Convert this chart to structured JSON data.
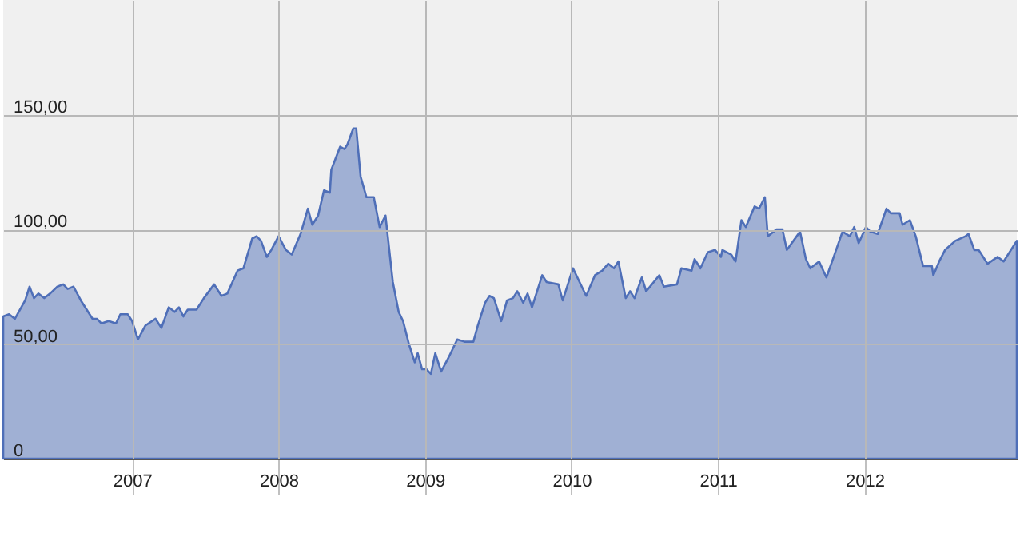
{
  "chart_data": {
    "type": "area",
    "series": [
      {
        "color": "#4f6fb8",
        "x": [
          2006.12,
          2006.16,
          2006.2,
          2006.27,
          2006.3,
          2006.33,
          2006.36,
          2006.4,
          2006.44,
          2006.49,
          2006.53,
          2006.56,
          2006.6,
          2006.65,
          2006.73,
          2006.76,
          2006.79,
          2006.84,
          2006.89,
          2006.92,
          2006.97,
          2007.0,
          2007.04,
          2007.09,
          2007.16,
          2007.2,
          2007.25,
          2007.29,
          2007.32,
          2007.35,
          2007.38,
          2007.44,
          2007.49,
          2007.56,
          2007.61,
          2007.65,
          2007.72,
          2007.76,
          2007.82,
          2007.85,
          2007.88,
          2007.92,
          2007.95,
          2008.0,
          2008.05,
          2008.09,
          2008.15,
          2008.2,
          2008.23,
          2008.27,
          2008.31,
          2008.35,
          2008.36,
          2008.39,
          2008.42,
          2008.45,
          2008.47,
          2008.51,
          2008.53,
          2008.56,
          2008.6,
          2008.65,
          2008.69,
          2008.73,
          2008.78,
          2008.82,
          2008.85,
          2008.89,
          2008.93,
          2008.95,
          2008.98,
          2009.01,
          2009.04,
          2009.07,
          2009.11,
          2009.16,
          2009.22,
          2009.27,
          2009.33,
          2009.36,
          2009.41,
          2009.44,
          2009.47,
          2009.52,
          2009.56,
          2009.6,
          2009.63,
          2009.67,
          2009.7,
          2009.73,
          2009.8,
          2009.83,
          2009.91,
          2009.94,
          2010.01,
          2010.1,
          2010.16,
          2010.21,
          2010.25,
          2010.29,
          2010.32,
          2010.37,
          2010.4,
          2010.43,
          2010.48,
          2010.51,
          2010.6,
          2010.63,
          2010.72,
          2010.75,
          2010.82,
          2010.84,
          2010.88,
          2010.93,
          2010.98,
          2011.02,
          2011.03,
          2011.09,
          2011.12,
          2011.16,
          2011.19,
          2011.25,
          2011.28,
          2011.32,
          2011.34,
          2011.4,
          2011.44,
          2011.47,
          2011.56,
          2011.6,
          2011.63,
          2011.69,
          2011.74,
          2011.79,
          2011.85,
          2011.9,
          2011.93,
          2011.96,
          2012.01,
          2012.04,
          2012.09,
          2012.15,
          2012.18,
          2012.24,
          2012.26,
          2012.31,
          2012.35,
          2012.4,
          2012.46,
          2012.47,
          2012.51,
          2012.55,
          2012.62,
          2012.69,
          2012.71,
          2012.75,
          2012.78,
          2012.84,
          2012.91,
          2012.95,
          2013.04
        ],
        "values": [
          62,
          63,
          61,
          69,
          75,
          70,
          72,
          70,
          72,
          75,
          76,
          74,
          75,
          69,
          61,
          61,
          59,
          60,
          59,
          63,
          63,
          60,
          52,
          58,
          61,
          57,
          66,
          64,
          66,
          62,
          65,
          65,
          70,
          76,
          71,
          72,
          82,
          83,
          96,
          97,
          95,
          88,
          91,
          97,
          91,
          89,
          98,
          109,
          102,
          106,
          117,
          116,
          126,
          131,
          136,
          135,
          137,
          144,
          144,
          123,
          114,
          114,
          101,
          106,
          77,
          64,
          60,
          50,
          42,
          46,
          39,
          39,
          37,
          46,
          38,
          44,
          52,
          51,
          51,
          58,
          68,
          71,
          70,
          60,
          69,
          70,
          73,
          68,
          72,
          66,
          80,
          77,
          76,
          69,
          83,
          71,
          80,
          82,
          85,
          83,
          86,
          70,
          73,
          70,
          79,
          73,
          80,
          75,
          76,
          83,
          82,
          87,
          83,
          90,
          91,
          88,
          91,
          89,
          86,
          104,
          101,
          110,
          109,
          114,
          97,
          100,
          100,
          91,
          99,
          87,
          83,
          86,
          79,
          88,
          99,
          97,
          101,
          94,
          101,
          99,
          98,
          109,
          107,
          107,
          102,
          104,
          97,
          84,
          84,
          80,
          86,
          91,
          95,
          97,
          98,
          91,
          91,
          85,
          88,
          86,
          95
        ]
      }
    ],
    "xlim": [
      2006.12,
      2013.04
    ],
    "xticks": [
      2007,
      2008,
      2009,
      2010,
      2011,
      2012
    ],
    "ylim": [
      0,
      200
    ],
    "yticks": [
      {
        "value": 0,
        "label": "0"
      },
      {
        "value": 50,
        "label": "50,00"
      },
      {
        "value": 100,
        "label": "100,00"
      },
      {
        "value": 150,
        "label": "150,00"
      }
    ],
    "grid": true,
    "marker": "none",
    "line_style": "solid"
  }
}
